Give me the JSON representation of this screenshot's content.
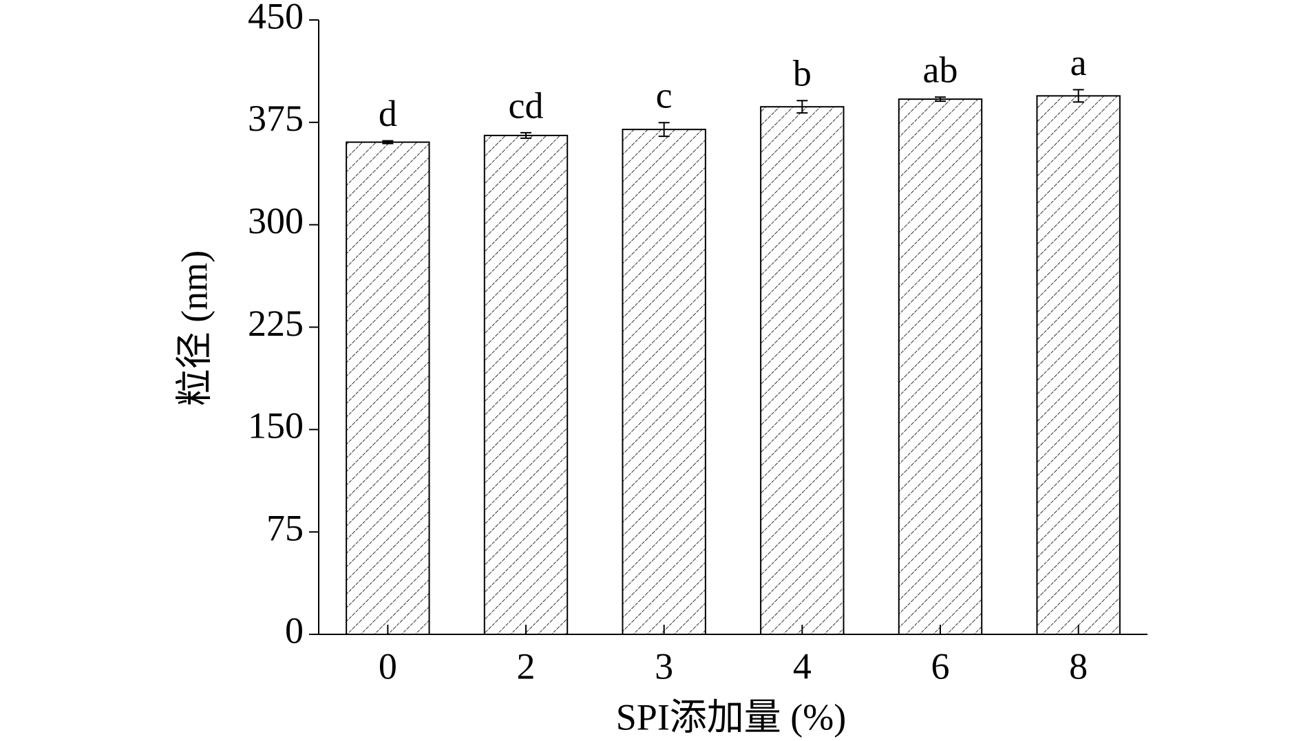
{
  "chart_data": {
    "type": "bar",
    "y_label": "粒径 (nm)",
    "x_label": "SPI添加量 (%)",
    "categories": [
      "0",
      "2",
      "3",
      "4",
      "6",
      "8"
    ],
    "values": [
      360.5,
      365.4,
      369.8,
      386.4,
      392,
      394.4
    ],
    "errors": [
      1,
      2,
      5,
      4.5,
      1.5,
      4.5
    ],
    "significance": [
      "d",
      "cd",
      "c",
      "b",
      "ab",
      "a"
    ],
    "color": "#000000",
    "ylim": [
      0,
      450
    ],
    "yticks": [
      0,
      75,
      150,
      225,
      300,
      375,
      450
    ],
    "grid": false
  }
}
